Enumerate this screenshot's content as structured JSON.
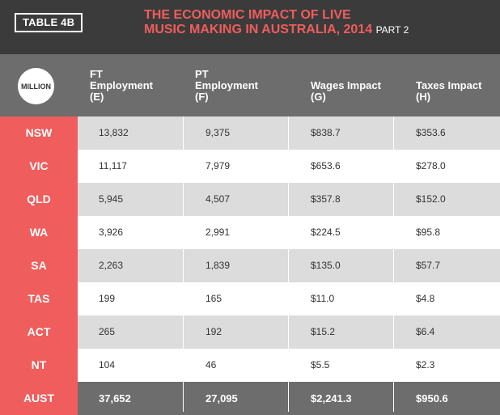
{
  "tag": "TABLE 4B",
  "title": {
    "line1": "THE ECONOMIC IMPACT OF LIVE",
    "line2": "MUSIC MAKING IN AUSTRALIA, 2014",
    "part": "PART 2"
  },
  "badge": "MILLION",
  "columns": [
    {
      "line1": "FT",
      "line2": "Employment",
      "line3": "(E)"
    },
    {
      "line1": "PT",
      "line2": "Employment",
      "line3": "(F)"
    },
    {
      "line1": "Wages Impact",
      "line2": "(G)"
    },
    {
      "line1": "Taxes Impact",
      "line2": "(H)"
    }
  ],
  "chart_data": {
    "type": "table",
    "title": "THE ECONOMIC IMPACT OF LIVE MUSIC MAKING IN AUSTRALIA, 2014 PART 2",
    "units": "MILLION",
    "columns": [
      "FT Employment (E)",
      "PT Employment (F)",
      "Wages Impact (G)",
      "Taxes Impact (H)"
    ],
    "rows": [
      {
        "state": "NSW",
        "values": [
          "13,832",
          "9,375",
          "$838.7",
          "$353.6"
        ]
      },
      {
        "state": "VIC",
        "values": [
          "11,117",
          "7,979",
          "$653.6",
          "$278.0"
        ]
      },
      {
        "state": "QLD",
        "values": [
          "5,945",
          "4,507",
          "$357.8",
          "$152.0"
        ]
      },
      {
        "state": "WA",
        "values": [
          "3,926",
          "2,991",
          "$224.5",
          "$95.8"
        ]
      },
      {
        "state": "SA",
        "values": [
          "2,263",
          "1,839",
          "$135.0",
          "$57.7"
        ]
      },
      {
        "state": "TAS",
        "values": [
          "199",
          "165",
          "$11.0",
          "$4.8"
        ]
      },
      {
        "state": "ACT",
        "values": [
          "265",
          "192",
          "$15.2",
          "$6.4"
        ]
      },
      {
        "state": "NT",
        "values": [
          "104",
          "46",
          "$5.5",
          "$2.3"
        ]
      },
      {
        "state": "AUST",
        "values": [
          "37,652",
          "27,095",
          "$2,241.3",
          "$950.6"
        ]
      }
    ]
  }
}
